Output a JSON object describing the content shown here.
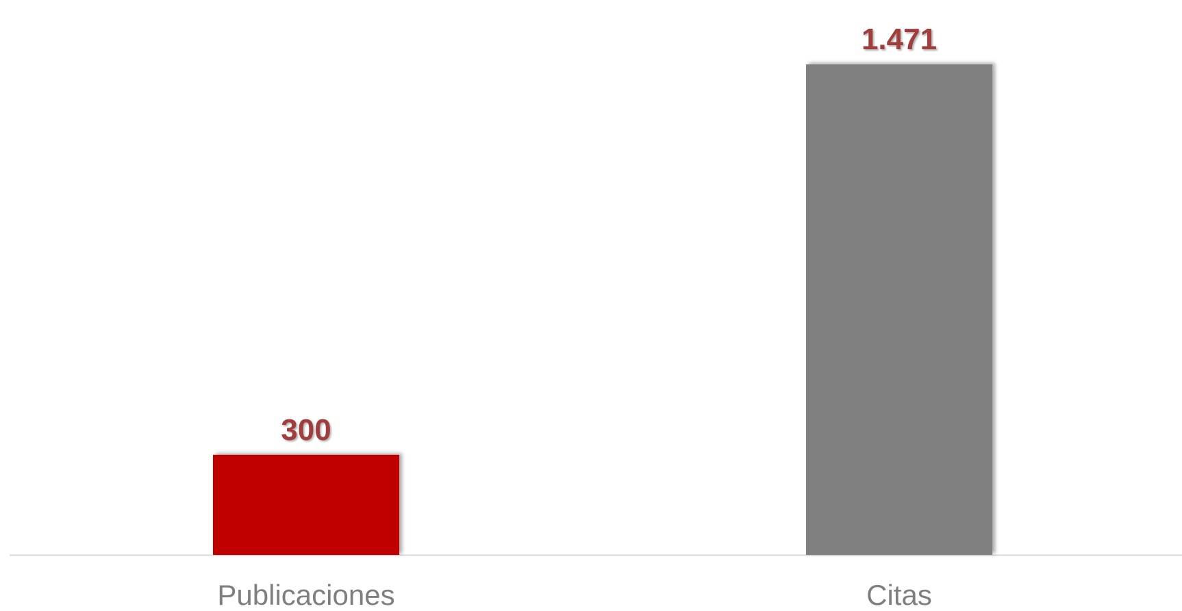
{
  "chart_data": {
    "type": "bar",
    "categories": [
      "Publicaciones",
      "Citas"
    ],
    "values": [
      300,
      1471
    ],
    "data_labels": [
      "300",
      "1.471"
    ],
    "title": "",
    "xlabel": "",
    "ylabel": "",
    "ylim": [
      0,
      1500
    ],
    "grid": false,
    "legend": "none"
  },
  "colors": {
    "bars": [
      "#c00000",
      "#808080"
    ],
    "data_label": "#a03c3c",
    "category_label": "#7f7f7f",
    "axis_line": "#d9d9d9"
  }
}
